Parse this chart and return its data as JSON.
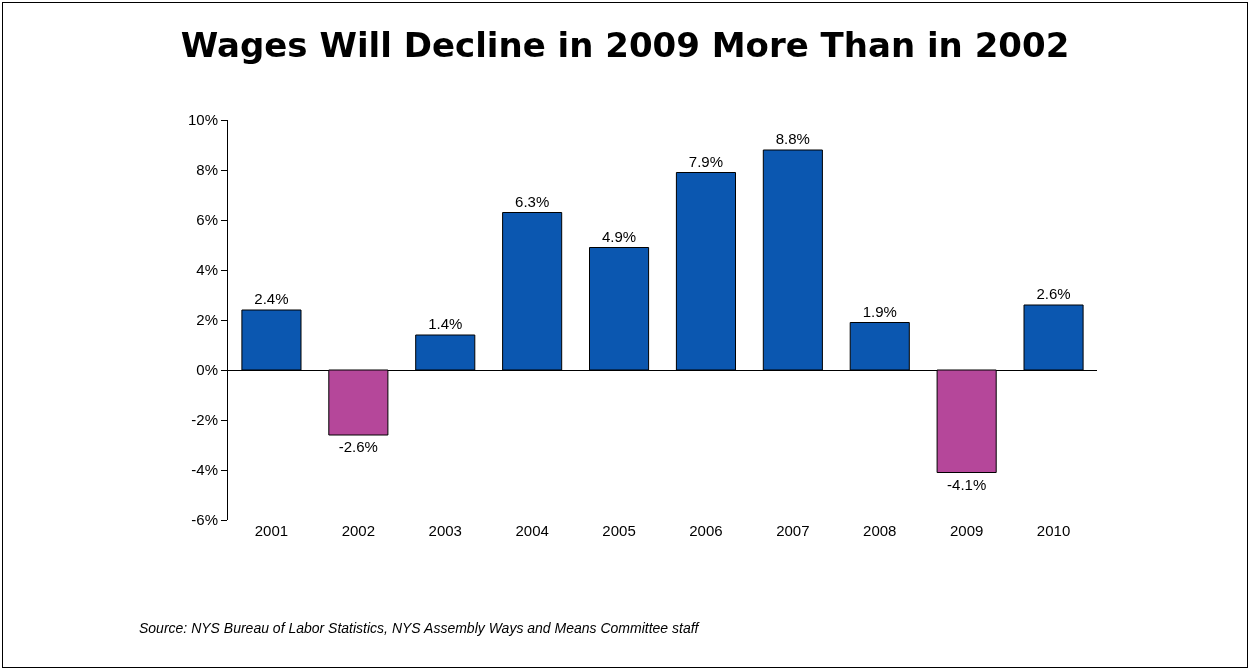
{
  "chart_data": {
    "type": "bar",
    "title": "Wages Will Decline in 2009 More Than in 2002",
    "categories": [
      "2001",
      "2002",
      "2003",
      "2004",
      "2005",
      "2006",
      "2007",
      "2008",
      "2009",
      "2010"
    ],
    "values": [
      2.4,
      -2.6,
      1.4,
      6.3,
      4.9,
      7.9,
      8.8,
      1.9,
      -4.1,
      2.6
    ],
    "value_labels": [
      "2.4%",
      "-2.6%",
      "1.4%",
      "6.3%",
      "4.9%",
      "7.9%",
      "8.8%",
      "1.9%",
      "-4.1%",
      "2.6%"
    ],
    "colors": [
      "#0b57b0",
      "#b5479a",
      "#0b57b0",
      "#0b57b0",
      "#0b57b0",
      "#0b57b0",
      "#0b57b0",
      "#0b57b0",
      "#b5479a",
      "#0b57b0"
    ],
    "ylim": [
      -6,
      10
    ],
    "yticks": [
      {
        "value": -6,
        "label": "-6%"
      },
      {
        "value": -4,
        "label": "-4%"
      },
      {
        "value": -2,
        "label": "-2%"
      },
      {
        "value": 0,
        "label": "0%"
      },
      {
        "value": 2,
        "label": "2%"
      },
      {
        "value": 4,
        "label": "4%"
      },
      {
        "value": 6,
        "label": "6%"
      },
      {
        "value": 8,
        "label": "8%"
      },
      {
        "value": 10,
        "label": "10%"
      }
    ],
    "annotations": [
      "Source: NYS Bureau of Labor Statistics, NYS Assembly Ways and Means Committee staff"
    ]
  }
}
